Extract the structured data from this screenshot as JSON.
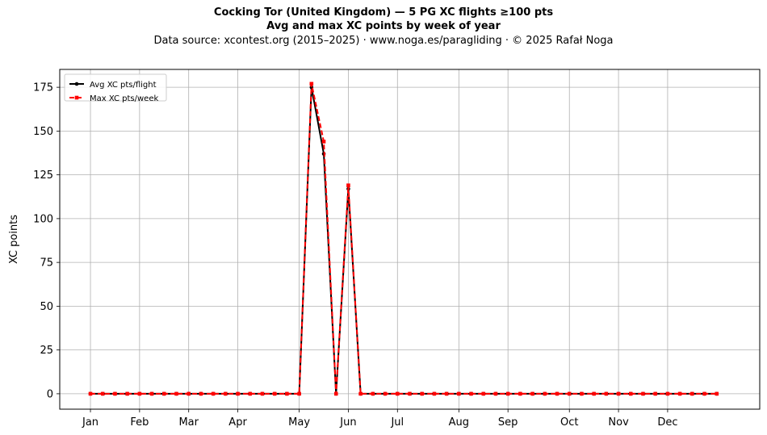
{
  "header": {
    "title": "Cocking Tor (United Kingdom)  —  5 PG XC flights ≥100 pts",
    "subtitle": "Avg and max XC points by week of year",
    "source": "Data source: xcontest.org (2015–2025)  ·  www.noga.es/paragliding  ·  © 2025 Rafał Noga"
  },
  "chart_data": {
    "type": "line",
    "ylabel": "XC points",
    "xlabel": "",
    "xlim": [
      -2.5,
      54.5
    ],
    "ylim": [
      -8.8,
      185.2
    ],
    "y_ticks": [
      0,
      25,
      50,
      75,
      100,
      125,
      150,
      175
    ],
    "x_ticks": [
      {
        "week": 0,
        "label": "Jan"
      },
      {
        "week": 4,
        "label": "Feb"
      },
      {
        "week": 8,
        "label": "Mar"
      },
      {
        "week": 12,
        "label": "Apr"
      },
      {
        "week": 17,
        "label": "May"
      },
      {
        "week": 21,
        "label": "Jun"
      },
      {
        "week": 25,
        "label": "Jul"
      },
      {
        "week": 30,
        "label": "Aug"
      },
      {
        "week": 34,
        "label": "Sep"
      },
      {
        "week": 39,
        "label": "Oct"
      },
      {
        "week": 43,
        "label": "Nov"
      },
      {
        "week": 47,
        "label": "Dec"
      }
    ],
    "grid": true,
    "legend_position": "top-left",
    "series": [
      {
        "name": "Avg XC pts/flight",
        "color": "#000000",
        "style": "solid-circle",
        "x": [
          0,
          1,
          2,
          3,
          4,
          5,
          6,
          7,
          8,
          9,
          10,
          11,
          12,
          13,
          14,
          15,
          16,
          17,
          18,
          19,
          20,
          21,
          22,
          23,
          24,
          25,
          26,
          27,
          28,
          29,
          30,
          31,
          32,
          33,
          34,
          35,
          36,
          37,
          38,
          39,
          40,
          41,
          42,
          43,
          44,
          45,
          46,
          47,
          48,
          49,
          50,
          51
        ],
        "values": [
          0,
          0,
          0,
          0,
          0,
          0,
          0,
          0,
          0,
          0,
          0,
          0,
          0,
          0,
          0,
          0,
          0,
          0,
          175,
          137,
          0,
          117,
          0,
          0,
          0,
          0,
          0,
          0,
          0,
          0,
          0,
          0,
          0,
          0,
          0,
          0,
          0,
          0,
          0,
          0,
          0,
          0,
          0,
          0,
          0,
          0,
          0,
          0,
          0,
          0,
          0,
          0
        ]
      },
      {
        "name": "Max XC pts/week",
        "color": "#ff0000",
        "style": "dashed-square",
        "x": [
          0,
          1,
          2,
          3,
          4,
          5,
          6,
          7,
          8,
          9,
          10,
          11,
          12,
          13,
          14,
          15,
          16,
          17,
          18,
          19,
          20,
          21,
          22,
          23,
          24,
          25,
          26,
          27,
          28,
          29,
          30,
          31,
          32,
          33,
          34,
          35,
          36,
          37,
          38,
          39,
          40,
          41,
          42,
          43,
          44,
          45,
          46,
          47,
          48,
          49,
          50,
          51
        ],
        "values": [
          0,
          0,
          0,
          0,
          0,
          0,
          0,
          0,
          0,
          0,
          0,
          0,
          0,
          0,
          0,
          0,
          0,
          0,
          177,
          144,
          0,
          119,
          0,
          0,
          0,
          0,
          0,
          0,
          0,
          0,
          0,
          0,
          0,
          0,
          0,
          0,
          0,
          0,
          0,
          0,
          0,
          0,
          0,
          0,
          0,
          0,
          0,
          0,
          0,
          0,
          0,
          0
        ]
      }
    ]
  }
}
